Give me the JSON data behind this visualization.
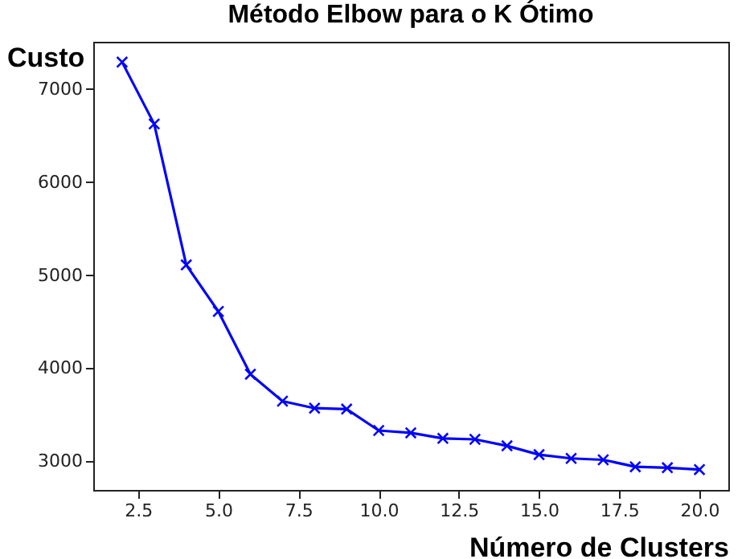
{
  "chart_data": {
    "type": "line",
    "title": "Método Elbow para o K Ótimo",
    "xlabel": "Número de Clusters",
    "ylabel": "Custo",
    "x": [
      2,
      3,
      4,
      5,
      6,
      7,
      8,
      9,
      10,
      11,
      12,
      13,
      14,
      15,
      16,
      17,
      18,
      19,
      20
    ],
    "series": [
      {
        "color": "#0000ff",
        "values": [
          7290,
          6625,
          5110,
          4610,
          3935,
          3645,
          3570,
          3560,
          3330,
          3305,
          3245,
          3235,
          3165,
          3070,
          3030,
          3015,
          2940,
          2930,
          2910
        ]
      }
    ],
    "xlim": [
      1.1,
      20.9
    ],
    "ylim": [
      2691,
      7509
    ],
    "xticks": [
      {
        "value": 2.5,
        "label": "2.5"
      },
      {
        "value": 5,
        "label": "5.0"
      },
      {
        "value": 7.5,
        "label": "7.5"
      },
      {
        "value": 10,
        "label": "10.0"
      },
      {
        "value": 12.5,
        "label": "12.5"
      },
      {
        "value": 15,
        "label": "15.0"
      },
      {
        "value": 17.5,
        "label": "17.5"
      },
      {
        "value": 20,
        "label": "20.0"
      }
    ],
    "yticks": [
      3000,
      4000,
      5000,
      6000,
      7000
    ],
    "marker": "x",
    "line_style": "solid"
  }
}
